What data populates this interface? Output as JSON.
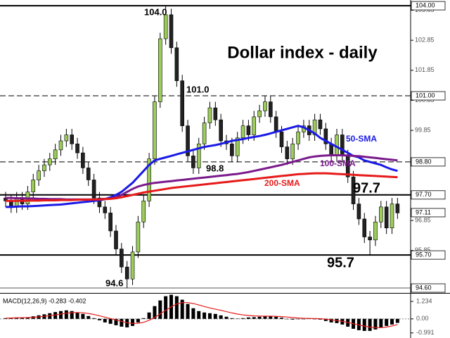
{
  "chart_data": {
    "type": "candlestick",
    "title": "Dollar index - daily",
    "ylim": [
      94.46,
      104.19
    ],
    "yticks": [
      103.85,
      102.85,
      101.85,
      100.85,
      99.85,
      96.85,
      95.85
    ],
    "candles": {
      "up_color": "#9ccc5a",
      "down_color": "#222222",
      "open": [
        97.6,
        97.5,
        97.3,
        97.6,
        97.4,
        97.8,
        98.2,
        98.5,
        98.7,
        98.9,
        99.2,
        99.5,
        99.7,
        99.4,
        99.1,
        98.6,
        98.2,
        97.6,
        97.3,
        97.1,
        96.5,
        95.9,
        95.3,
        94.9,
        95.8,
        96.8,
        97.5,
        98.9,
        100.8,
        102.9,
        103.7,
        102.6,
        101.5,
        100.0,
        99.0,
        98.6,
        99.4,
        100.1,
        100.6,
        100.2,
        99.5,
        99.4,
        99.0,
        99.6,
        100.0,
        99.7,
        100.3,
        100.5,
        100.8,
        100.3,
        99.8,
        99.3,
        98.9,
        99.4,
        99.8,
        100.0,
        99.7,
        100.2,
        99.9,
        99.4,
        99.0,
        99.7,
        99.0,
        98.3,
        97.4,
        96.9,
        96.3,
        96.2,
        96.8,
        97.3,
        96.6,
        97.4
      ],
      "high": [
        97.8,
        97.7,
        97.8,
        97.8,
        98.0,
        98.4,
        98.7,
        98.9,
        99.1,
        99.4,
        99.7,
        99.9,
        99.9,
        99.6,
        99.3,
        98.8,
        98.4,
        97.8,
        97.5,
        97.3,
        96.7,
        96.1,
        95.5,
        96.0,
        97.0,
        97.7,
        99.1,
        101.0,
        103.1,
        104.0,
        103.9,
        102.8,
        101.7,
        100.2,
        99.2,
        99.6,
        100.3,
        100.8,
        100.8,
        100.4,
        99.7,
        99.6,
        99.8,
        100.2,
        100.2,
        100.5,
        100.7,
        101.0,
        101.0,
        100.5,
        100.0,
        99.5,
        99.6,
        100.0,
        100.2,
        100.2,
        100.4,
        100.4,
        100.1,
        99.6,
        99.9,
        99.9,
        99.2,
        98.5,
        97.6,
        97.1,
        96.5,
        97.0,
        97.5,
        97.5,
        97.6,
        97.6
      ],
      "low": [
        97.3,
        97.1,
        97.1,
        97.2,
        97.2,
        97.6,
        98.0,
        98.3,
        98.5,
        98.7,
        99.0,
        99.3,
        99.2,
        98.9,
        98.4,
        98.0,
        97.4,
        97.1,
        96.9,
        96.3,
        95.7,
        95.1,
        94.6,
        94.7,
        95.6,
        96.6,
        97.3,
        98.7,
        100.6,
        102.7,
        102.4,
        101.3,
        99.8,
        98.8,
        98.4,
        98.4,
        99.2,
        99.9,
        100.0,
        99.3,
        99.2,
        98.8,
        98.8,
        99.4,
        99.5,
        99.5,
        100.1,
        100.3,
        100.1,
        99.6,
        99.1,
        98.7,
        98.7,
        99.2,
        99.6,
        99.5,
        99.5,
        99.7,
        99.2,
        98.8,
        98.8,
        98.8,
        98.1,
        97.2,
        96.7,
        96.1,
        95.7,
        96.0,
        96.6,
        96.4,
        96.4,
        96.9
      ],
      "close": [
        97.5,
        97.3,
        97.6,
        97.4,
        97.8,
        98.2,
        98.5,
        98.7,
        98.9,
        99.2,
        99.5,
        99.7,
        99.4,
        99.1,
        98.6,
        98.2,
        97.6,
        97.3,
        97.1,
        96.5,
        95.9,
        95.3,
        94.9,
        95.8,
        96.8,
        97.5,
        98.9,
        100.8,
        102.9,
        103.7,
        102.6,
        101.5,
        100.0,
        99.0,
        98.6,
        99.4,
        100.1,
        100.6,
        100.2,
        99.5,
        99.4,
        99.0,
        99.6,
        100.0,
        99.7,
        100.3,
        100.5,
        100.8,
        100.3,
        99.8,
        99.3,
        98.9,
        99.4,
        99.8,
        100.0,
        99.7,
        100.2,
        99.9,
        99.4,
        99.0,
        99.7,
        99.0,
        98.3,
        97.4,
        96.9,
        96.3,
        96.2,
        96.8,
        97.3,
        96.6,
        97.4,
        97.1
      ]
    },
    "series": [
      {
        "name": "50-SMA",
        "color": "#1a1ae6",
        "values": [
          97.3,
          97.3,
          97.31,
          97.32,
          97.32,
          97.33,
          97.34,
          97.35,
          97.36,
          97.37,
          97.38,
          97.4,
          97.42,
          97.44,
          97.46,
          97.48,
          97.5,
          97.52,
          97.56,
          97.62,
          97.7,
          97.8,
          97.95,
          98.1,
          98.3,
          98.5,
          98.7,
          98.85,
          98.9,
          98.95,
          99.0,
          99.05,
          99.1,
          99.15,
          99.2,
          99.25,
          99.3,
          99.33,
          99.36,
          99.4,
          99.45,
          99.5,
          99.53,
          99.56,
          99.6,
          99.63,
          99.66,
          99.7,
          99.75,
          99.8,
          99.85,
          99.9,
          99.95,
          100.0,
          99.95,
          99.85,
          99.75,
          99.6,
          99.5,
          99.4,
          99.3,
          99.2,
          99.1,
          99.0,
          98.95,
          98.85,
          98.8,
          98.75,
          98.7,
          98.62,
          98.55,
          98.5
        ]
      },
      {
        "name": "100-SMA",
        "color": "#7a1a8c",
        "values": [
          97.6,
          97.6,
          97.59,
          97.59,
          97.58,
          97.58,
          97.57,
          97.57,
          97.56,
          97.56,
          97.56,
          97.55,
          97.55,
          97.55,
          97.55,
          97.55,
          97.55,
          97.56,
          97.57,
          97.58,
          97.62,
          97.7,
          97.8,
          97.9,
          97.98,
          98.03,
          98.07,
          98.1,
          98.12,
          98.14,
          98.16,
          98.18,
          98.2,
          98.22,
          98.24,
          98.26,
          98.28,
          98.3,
          98.32,
          98.34,
          98.36,
          98.38,
          98.4,
          98.43,
          98.46,
          98.5,
          98.54,
          98.58,
          98.62,
          98.66,
          98.7,
          98.75,
          98.8,
          98.85,
          98.9,
          98.95,
          98.98,
          99.0,
          99.01,
          99.02,
          99.02,
          99.02,
          99.01,
          99.0,
          98.99,
          98.97,
          98.95,
          98.93,
          98.91,
          98.89,
          98.87,
          98.85
        ]
      },
      {
        "name": "200-SMA",
        "color": "#e61a1a",
        "values": [
          97.5,
          97.5,
          97.5,
          97.5,
          97.51,
          97.51,
          97.51,
          97.52,
          97.52,
          97.52,
          97.53,
          97.53,
          97.53,
          97.54,
          97.54,
          97.54,
          97.55,
          97.55,
          97.56,
          97.57,
          97.59,
          97.62,
          97.66,
          97.7,
          97.74,
          97.78,
          97.81,
          97.84,
          97.87,
          97.9,
          97.93,
          97.95,
          97.97,
          97.99,
          98.01,
          98.03,
          98.05,
          98.07,
          98.09,
          98.11,
          98.13,
          98.15,
          98.17,
          98.19,
          98.21,
          98.23,
          98.25,
          98.27,
          98.29,
          98.31,
          98.33,
          98.35,
          98.37,
          98.39,
          98.4,
          98.41,
          98.42,
          98.42,
          98.42,
          98.41,
          98.4,
          98.39,
          98.38,
          98.37,
          98.36,
          98.35,
          98.34,
          98.33,
          98.32,
          98.31,
          98.3,
          98.29
        ]
      }
    ],
    "levels": [
      {
        "value": 104.0,
        "label": "104.00",
        "style": "solid"
      },
      {
        "value": 101.0,
        "label": "101.00",
        "style": "dashed"
      },
      {
        "value": 98.8,
        "label": "98.80",
        "style": "dashed"
      },
      {
        "value": 97.7,
        "label": "97.70",
        "style": "solid"
      },
      {
        "value": 95.7,
        "label": "95.70",
        "style": "solid"
      },
      {
        "value": 94.6,
        "label": "94.60",
        "style": "thin"
      }
    ],
    "last_price": 97.11,
    "annotations": [
      {
        "text": "104.0",
        "color": "#000000"
      },
      {
        "text": "101.0",
        "color": "#000000"
      },
      {
        "text": "98.8",
        "color": "#000000"
      },
      {
        "text": "94.6",
        "color": "#000000"
      },
      {
        "text": "97.7",
        "color": "#000000"
      },
      {
        "text": "95.7",
        "color": "#000000"
      },
      {
        "text": "50-SMA",
        "color": "#1a1ae6"
      },
      {
        "text": "100-SMA",
        "color": "#7a1a8c"
      },
      {
        "text": "200-SMA",
        "color": "#e61a1a"
      }
    ],
    "macd": {
      "label": "MACD(12,26,9) -0.283 -0.402",
      "ylim": [
        -1.35,
        1.73
      ],
      "yticks": [
        1.234,
        {
          "value": 0,
          "label": "0.00"
        },
        -0.991
      ],
      "histogram_color": "#000000",
      "signal_color": "#e61a1a",
      "histogram": [
        0.05,
        0.08,
        0.1,
        0.1,
        0.12,
        0.18,
        0.25,
        0.32,
        0.4,
        0.48,
        0.55,
        0.6,
        0.55,
        0.45,
        0.35,
        0.2,
        0.05,
        -0.1,
        -0.25,
        -0.35,
        -0.45,
        -0.55,
        -0.6,
        -0.5,
        -0.25,
        0.05,
        0.45,
        0.9,
        1.3,
        1.6,
        1.7,
        1.6,
        1.35,
        1.05,
        0.75,
        0.55,
        0.45,
        0.4,
        0.35,
        0.25,
        0.15,
        0.05,
        0.02,
        0.05,
        0.1,
        0.12,
        0.15,
        0.18,
        0.2,
        0.15,
        0.08,
        0.0,
        -0.05,
        -0.02,
        0.0,
        0.02,
        0.0,
        -0.05,
        -0.15,
        -0.25,
        -0.3,
        -0.4,
        -0.55,
        -0.7,
        -0.8,
        -0.85,
        -0.85,
        -0.75,
        -0.6,
        -0.5,
        -0.4,
        -0.283
      ],
      "signal": [
        0.05,
        0.06,
        0.07,
        0.08,
        0.09,
        0.11,
        0.14,
        0.18,
        0.23,
        0.28,
        0.34,
        0.4,
        0.44,
        0.45,
        0.43,
        0.38,
        0.31,
        0.22,
        0.12,
        0.02,
        -0.08,
        -0.18,
        -0.27,
        -0.32,
        -0.31,
        -0.24,
        -0.1,
        0.1,
        0.35,
        0.6,
        0.85,
        1.05,
        1.15,
        1.15,
        1.08,
        0.98,
        0.87,
        0.77,
        0.68,
        0.6,
        0.51,
        0.42,
        0.34,
        0.28,
        0.24,
        0.21,
        0.2,
        0.19,
        0.19,
        0.18,
        0.16,
        0.13,
        0.09,
        0.06,
        0.04,
        0.03,
        0.02,
        0.01,
        -0.02,
        -0.07,
        -0.12,
        -0.18,
        -0.25,
        -0.34,
        -0.43,
        -0.51,
        -0.58,
        -0.62,
        -0.62,
        -0.58,
        -0.5,
        -0.402
      ]
    }
  }
}
